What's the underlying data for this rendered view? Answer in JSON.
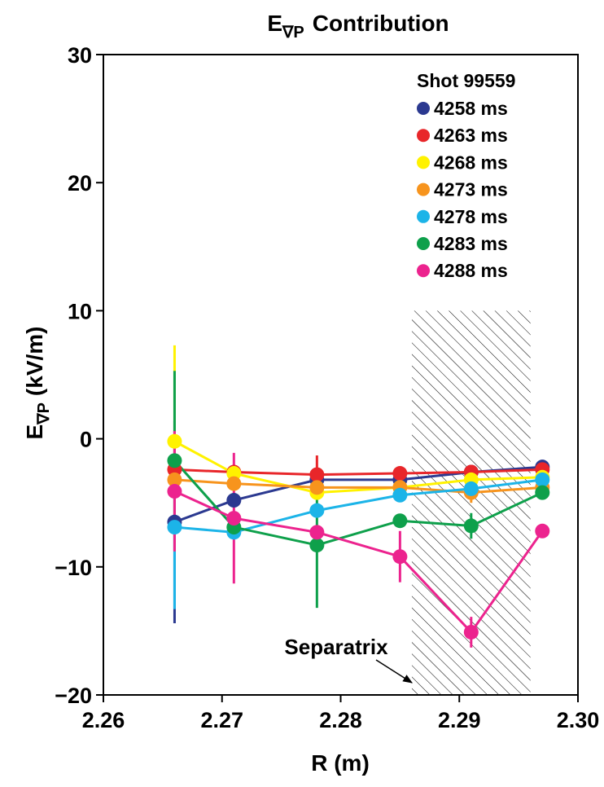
{
  "chart_data": {
    "type": "line",
    "title": {
      "main": "E",
      "subscript": "∇P",
      "rest": "Contribution"
    },
    "ylabel": {
      "main": "E",
      "subscript": "∇P",
      "rest": "(kV/m)"
    },
    "xlabel": "R (m)",
    "x": [
      2.266,
      2.271,
      2.278,
      2.285,
      2.291,
      2.297
    ],
    "xlim": [
      2.26,
      2.3
    ],
    "xticks": [
      2.26,
      2.27,
      2.28,
      2.29,
      {
        "value": 2.3,
        "label": "2.30"
      }
    ],
    "ylim": [
      -20,
      30
    ],
    "yticks": [
      {
        "value": -20,
        "label": "−20"
      },
      {
        "value": -10,
        "label": "−10"
      },
      0,
      10,
      20,
      30
    ],
    "legend": "upper right",
    "legend_title": "Shot 99559",
    "series": [
      {
        "name": "4258 ms",
        "color": "#2b3990",
        "values": [
          -6.5,
          -4.8,
          -3.2,
          -3.2,
          -2.6,
          -2.2
        ],
        "errors": [
          7.9,
          null,
          null,
          null,
          null,
          null
        ]
      },
      {
        "name": "4263 ms",
        "color": "#e8262a",
        "values": [
          -2.4,
          -2.6,
          -2.8,
          -2.7,
          -2.6,
          -2.4
        ],
        "errors": [
          null,
          null,
          1.5,
          null,
          null,
          null
        ]
      },
      {
        "name": "4268 ms",
        "color": "#fff200",
        "values": [
          -0.2,
          -2.7,
          -4.2,
          -3.8,
          -3.2,
          -3.0
        ],
        "errors": [
          7.5,
          null,
          null,
          null,
          null,
          null
        ]
      },
      {
        "name": "4273 ms",
        "color": "#f7941d",
        "values": [
          -3.2,
          -3.5,
          -3.8,
          -3.8,
          -4.2,
          -3.8
        ],
        "errors": [
          null,
          null,
          null,
          null,
          0.8,
          null
        ]
      },
      {
        "name": "4278 ms",
        "color": "#1cb4e8",
        "values": [
          -6.9,
          -7.3,
          -5.6,
          -4.4,
          -3.9,
          -3.2
        ],
        "errors": [
          6.4,
          null,
          null,
          null,
          null,
          null
        ]
      },
      {
        "name": "4283 ms",
        "color": "#0ea04b",
        "values": [
          -1.7,
          -6.9,
          -8.3,
          -6.4,
          -6.8,
          -4.2
        ],
        "errors": [
          7.0,
          null,
          4.9,
          null,
          1.0,
          null
        ]
      },
      {
        "name": "4288 ms",
        "color": "#ec238e",
        "values": [
          -4.1,
          -6.2,
          -7.3,
          -9.2,
          -15.1,
          -7.2
        ],
        "errors": [
          4.7,
          5.1,
          null,
          2.0,
          1.2,
          null
        ]
      }
    ],
    "shaded_region": {
      "xlim": [
        2.286,
        2.296
      ],
      "ylim": [
        -20,
        10
      ]
    },
    "annotation": "Separatrix"
  }
}
